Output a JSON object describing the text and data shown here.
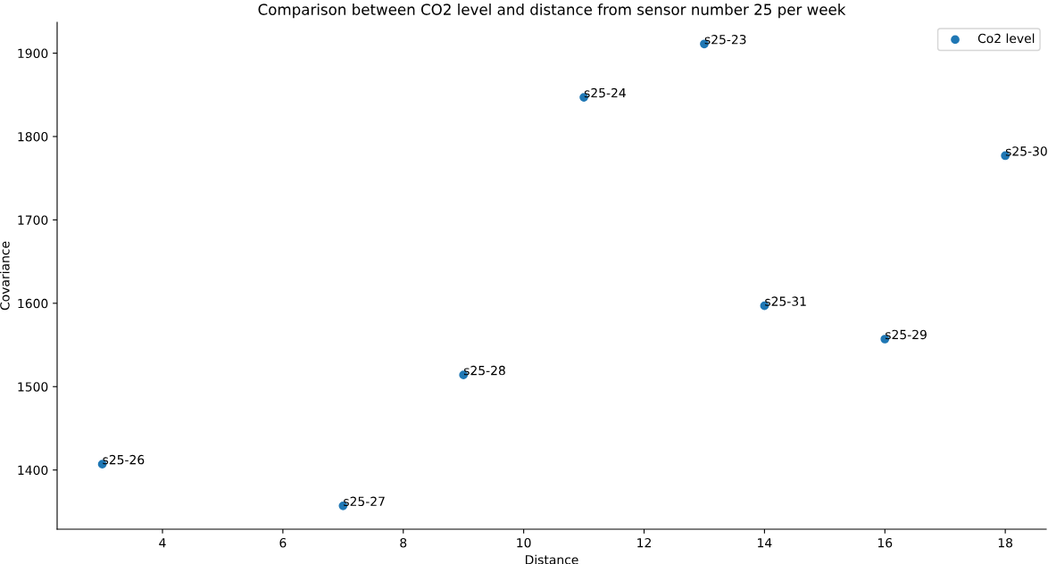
{
  "chart_data": {
    "type": "scatter",
    "title": "Comparison between CO2 level and distance from sensor number 25 per week",
    "xlabel": "Distance",
    "ylabel": "Covariance",
    "x": [
      13,
      11,
      18,
      14,
      16,
      9,
      3,
      7
    ],
    "series": [
      {
        "name": "Co2 level",
        "color": "#1f77b4",
        "values": [
          1911,
          1847,
          1777,
          1597,
          1557,
          1514,
          1407,
          1357
        ]
      }
    ],
    "annotations": [
      {
        "text": "s25-23",
        "x": 13,
        "y": 1911
      },
      {
        "text": "s25-24",
        "x": 11,
        "y": 1847
      },
      {
        "text": "s25-30",
        "x": 18,
        "y": 1777
      },
      {
        "text": "s25-31",
        "x": 14,
        "y": 1597
      },
      {
        "text": "s25-29",
        "x": 16,
        "y": 1557
      },
      {
        "text": "s25-28",
        "x": 9,
        "y": 1514
      },
      {
        "text": "s25-26",
        "x": 3,
        "y": 1407
      },
      {
        "text": "s25-27",
        "x": 7,
        "y": 1357
      }
    ],
    "xlim": [
      2.25,
      18.68
    ],
    "xticks": [
      4,
      6,
      8,
      10,
      12,
      14,
      16,
      18
    ],
    "ylim": [
      1329,
      1937
    ],
    "yticks": [
      1400,
      1500,
      1600,
      1700,
      1800,
      1900
    ],
    "legend": "top right",
    "marker": "circle",
    "grid": false
  }
}
